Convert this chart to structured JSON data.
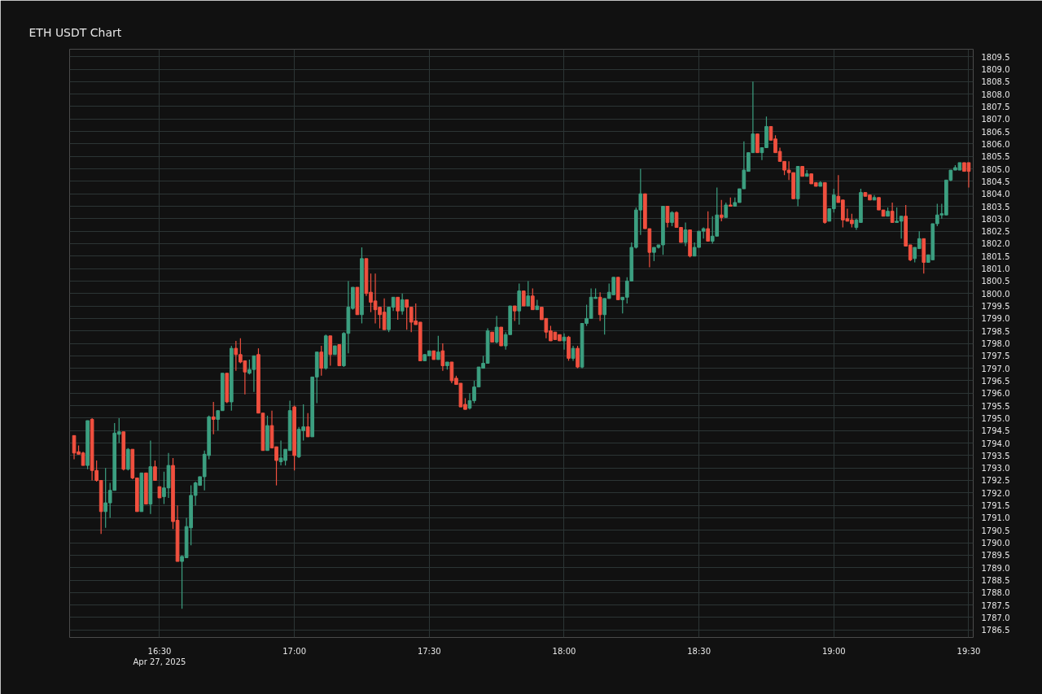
{
  "chart_data": {
    "type": "candlestick",
    "title": "ETH USDT Chart",
    "x": [
      "2025-04-27T16:11",
      "2025-04-27T16:12",
      "2025-04-27T16:13",
      "2025-04-27T16:14",
      "2025-04-27T16:15",
      "2025-04-27T16:16",
      "2025-04-27T16:17",
      "2025-04-27T16:18",
      "2025-04-27T16:19",
      "2025-04-27T16:20",
      "2025-04-27T16:21",
      "2025-04-27T16:22",
      "2025-04-27T16:23",
      "2025-04-27T16:24",
      "2025-04-27T16:25",
      "2025-04-27T16:26",
      "2025-04-27T16:27",
      "2025-04-27T16:28",
      "2025-04-27T16:29",
      "2025-04-27T16:30",
      "2025-04-27T16:31",
      "2025-04-27T16:32",
      "2025-04-27T16:33",
      "2025-04-27T16:34",
      "2025-04-27T16:35",
      "2025-04-27T16:36",
      "2025-04-27T16:37",
      "2025-04-27T16:38",
      "2025-04-27T16:39",
      "2025-04-27T16:40",
      "2025-04-27T16:41",
      "2025-04-27T16:42",
      "2025-04-27T16:43",
      "2025-04-27T16:44",
      "2025-04-27T16:45",
      "2025-04-27T16:46",
      "2025-04-27T16:47",
      "2025-04-27T16:48",
      "2025-04-27T16:49",
      "2025-04-27T16:50",
      "2025-04-27T16:51",
      "2025-04-27T16:52",
      "2025-04-27T16:53",
      "2025-04-27T16:54",
      "2025-04-27T16:55",
      "2025-04-27T16:56",
      "2025-04-27T16:57",
      "2025-04-27T16:58",
      "2025-04-27T16:59",
      "2025-04-27T17:00",
      "2025-04-27T17:01",
      "2025-04-27T17:02",
      "2025-04-27T17:03",
      "2025-04-27T17:04",
      "2025-04-27T17:05",
      "2025-04-27T17:06",
      "2025-04-27T17:07",
      "2025-04-27T17:08",
      "2025-04-27T17:09",
      "2025-04-27T17:10",
      "2025-04-27T17:11",
      "2025-04-27T17:12",
      "2025-04-27T17:13",
      "2025-04-27T17:14",
      "2025-04-27T17:15",
      "2025-04-27T17:16",
      "2025-04-27T17:17",
      "2025-04-27T17:18",
      "2025-04-27T17:19",
      "2025-04-27T17:20",
      "2025-04-27T17:21",
      "2025-04-27T17:22",
      "2025-04-27T17:23",
      "2025-04-27T17:24",
      "2025-04-27T17:25",
      "2025-04-27T17:26",
      "2025-04-27T17:27",
      "2025-04-27T17:28",
      "2025-04-27T17:29",
      "2025-04-27T17:30",
      "2025-04-27T17:31",
      "2025-04-27T17:32",
      "2025-04-27T17:33",
      "2025-04-27T17:34",
      "2025-04-27T17:35",
      "2025-04-27T17:36",
      "2025-04-27T17:37",
      "2025-04-27T17:38",
      "2025-04-27T17:39",
      "2025-04-27T17:40",
      "2025-04-27T17:41",
      "2025-04-27T17:42",
      "2025-04-27T17:43",
      "2025-04-27T17:44",
      "2025-04-27T17:45",
      "2025-04-27T17:46",
      "2025-04-27T17:47",
      "2025-04-27T17:48",
      "2025-04-27T17:49",
      "2025-04-27T17:50",
      "2025-04-27T17:51",
      "2025-04-27T17:52",
      "2025-04-27T17:53",
      "2025-04-27T17:54",
      "2025-04-27T17:55",
      "2025-04-27T17:56",
      "2025-04-27T17:57",
      "2025-04-27T17:58",
      "2025-04-27T17:59",
      "2025-04-27T18:00",
      "2025-04-27T18:01",
      "2025-04-27T18:02",
      "2025-04-27T18:03",
      "2025-04-27T18:04",
      "2025-04-27T18:05",
      "2025-04-27T18:06",
      "2025-04-27T18:07",
      "2025-04-27T18:08",
      "2025-04-27T18:09",
      "2025-04-27T18:10",
      "2025-04-27T18:11",
      "2025-04-27T18:12",
      "2025-04-27T18:13",
      "2025-04-27T18:14",
      "2025-04-27T18:15",
      "2025-04-27T18:16",
      "2025-04-27T18:17",
      "2025-04-27T18:18",
      "2025-04-27T18:19",
      "2025-04-27T18:20",
      "2025-04-27T18:21",
      "2025-04-27T18:22",
      "2025-04-27T18:23",
      "2025-04-27T18:24",
      "2025-04-27T18:25",
      "2025-04-27T18:26",
      "2025-04-27T18:27",
      "2025-04-27T18:28",
      "2025-04-27T18:29",
      "2025-04-27T18:30",
      "2025-04-27T18:31",
      "2025-04-27T18:32",
      "2025-04-27T18:33",
      "2025-04-27T18:34",
      "2025-04-27T18:35",
      "2025-04-27T18:36",
      "2025-04-27T18:37",
      "2025-04-27T18:38",
      "2025-04-27T18:39",
      "2025-04-27T18:40",
      "2025-04-27T18:41",
      "2025-04-27T18:42",
      "2025-04-27T18:43",
      "2025-04-27T18:44",
      "2025-04-27T18:45",
      "2025-04-27T18:46",
      "2025-04-27T18:47",
      "2025-04-27T18:48",
      "2025-04-27T18:49",
      "2025-04-27T18:50",
      "2025-04-27T18:51",
      "2025-04-27T18:52",
      "2025-04-27T18:53",
      "2025-04-27T18:54",
      "2025-04-27T18:55",
      "2025-04-27T18:56",
      "2025-04-27T18:57",
      "2025-04-27T18:58",
      "2025-04-27T18:59",
      "2025-04-27T19:00",
      "2025-04-27T19:01",
      "2025-04-27T19:02",
      "2025-04-27T19:03",
      "2025-04-27T19:04",
      "2025-04-27T19:05",
      "2025-04-27T19:06",
      "2025-04-27T19:07",
      "2025-04-27T19:08",
      "2025-04-27T19:09",
      "2025-04-27T19:10",
      "2025-04-27T19:11",
      "2025-04-27T19:12",
      "2025-04-27T19:13",
      "2025-04-27T19:14",
      "2025-04-27T19:15",
      "2025-04-27T19:16",
      "2025-04-27T19:17",
      "2025-04-27T19:18",
      "2025-04-27T19:19",
      "2025-04-27T19:20",
      "2025-04-27T19:21",
      "2025-04-27T19:22",
      "2025-04-27T19:23",
      "2025-04-27T19:24",
      "2025-04-27T19:25",
      "2025-04-27T19:26",
      "2025-04-27T19:27",
      "2025-04-27T19:28",
      "2025-04-27T19:29",
      "2025-04-27T19:30"
    ],
    "ohlc": [
      [
        1794.3,
        1794.3,
        1793.35,
        1793.6
      ],
      [
        1793.65,
        1793.9,
        1793.55,
        1793.55
      ],
      [
        1793.6,
        1793.65,
        1793.1,
        1793.1
      ],
      [
        1793.1,
        1794.9,
        1792.95,
        1794.9
      ],
      [
        1794.95,
        1795.0,
        1792.5,
        1792.9
      ],
      [
        1792.9,
        1793.3,
        1792.45,
        1792.5
      ],
      [
        1792.5,
        1792.5,
        1790.35,
        1791.25
      ],
      [
        1791.25,
        1793.0,
        1790.6,
        1791.6
      ],
      [
        1791.6,
        1792.4,
        1791.0,
        1792.1
      ],
      [
        1792.1,
        1794.8,
        1792.1,
        1794.4
      ],
      [
        1794.35,
        1795.0,
        1794.0,
        1794.45
      ],
      [
        1794.45,
        1794.45,
        1792.9,
        1792.95
      ],
      [
        1792.95,
        1793.8,
        1792.9,
        1793.75
      ],
      [
        1793.75,
        1793.75,
        1792.55,
        1792.6
      ],
      [
        1792.6,
        1792.6,
        1791.25,
        1791.25
      ],
      [
        1791.25,
        1792.8,
        1791.25,
        1792.8
      ],
      [
        1792.8,
        1792.8,
        1791.55,
        1791.55
      ],
      [
        1791.55,
        1794.1,
        1791.15,
        1793.05
      ],
      [
        1793.05,
        1793.3,
        1792.5,
        1792.5
      ],
      [
        1792.25,
        1792.25,
        1791.8,
        1791.8
      ],
      [
        1791.85,
        1792.85,
        1791.55,
        1792.2
      ],
      [
        1792.2,
        1793.6,
        1791.8,
        1793.1
      ],
      [
        1793.1,
        1793.4,
        1790.55,
        1790.85
      ],
      [
        1790.9,
        1791.5,
        1789.25,
        1789.25
      ],
      [
        1789.25,
        1789.5,
        1787.35,
        1789.45
      ],
      [
        1789.4,
        1791.0,
        1789.4,
        1790.65
      ],
      [
        1790.6,
        1792.3,
        1789.9,
        1791.9
      ],
      [
        1791.9,
        1792.45,
        1791.5,
        1792.4
      ],
      [
        1792.3,
        1792.65,
        1792.3,
        1792.65
      ],
      [
        1792.65,
        1793.7,
        1792.1,
        1793.55
      ],
      [
        1793.5,
        1795.1,
        1793.35,
        1795.05
      ],
      [
        1795.05,
        1795.65,
        1794.35,
        1794.95
      ],
      [
        1794.95,
        1795.3,
        1794.5,
        1795.3
      ],
      [
        1795.3,
        1796.8,
        1795.3,
        1796.8
      ],
      [
        1796.8,
        1796.8,
        1795.6,
        1795.65
      ],
      [
        1795.65,
        1797.9,
        1795.3,
        1797.8
      ],
      [
        1797.8,
        1798.1,
        1796.9,
        1797.55
      ],
      [
        1797.55,
        1798.2,
        1797.2,
        1797.25
      ],
      [
        1797.3,
        1797.3,
        1795.95,
        1796.85
      ],
      [
        1796.8,
        1797.35,
        1796.75,
        1796.95
      ],
      [
        1796.95,
        1797.5,
        1796.05,
        1797.5
      ],
      [
        1797.55,
        1797.8,
        1795.2,
        1795.2
      ],
      [
        1795.2,
        1795.2,
        1793.7,
        1793.7
      ],
      [
        1793.7,
        1795.1,
        1793.7,
        1794.7
      ],
      [
        1794.7,
        1795.3,
        1793.8,
        1793.8
      ],
      [
        1793.85,
        1793.85,
        1792.3,
        1793.3
      ],
      [
        1793.25,
        1794.1,
        1793.1,
        1793.4
      ],
      [
        1793.3,
        1793.75,
        1793.1,
        1793.75
      ],
      [
        1793.7,
        1795.7,
        1793.7,
        1795.3
      ],
      [
        1795.45,
        1795.5,
        1792.9,
        1793.5
      ],
      [
        1793.45,
        1794.65,
        1793.4,
        1794.55
      ],
      [
        1794.5,
        1795.55,
        1794.1,
        1794.65
      ],
      [
        1794.65,
        1795.2,
        1794.25,
        1794.25
      ],
      [
        1794.25,
        1796.65,
        1794.25,
        1796.65
      ],
      [
        1796.65,
        1797.65,
        1795.6,
        1797.65
      ],
      [
        1797.65,
        1797.9,
        1796.7,
        1797.0
      ],
      [
        1797.0,
        1798.35,
        1796.95,
        1798.3
      ],
      [
        1798.3,
        1798.3,
        1797.1,
        1797.55
      ],
      [
        1797.55,
        1797.9,
        1797.55,
        1797.9
      ],
      [
        1797.95,
        1797.95,
        1797.1,
        1797.1
      ],
      [
        1797.1,
        1798.45,
        1797.05,
        1798.4
      ],
      [
        1798.4,
        1800.5,
        1797.6,
        1799.45
      ],
      [
        1799.4,
        1800.25,
        1799.35,
        1800.25
      ],
      [
        1800.25,
        1800.25,
        1799.15,
        1799.15
      ],
      [
        1799.15,
        1801.85,
        1798.8,
        1801.4
      ],
      [
        1801.4,
        1801.4,
        1799.9,
        1800.0
      ],
      [
        1800.05,
        1800.8,
        1799.25,
        1799.65
      ],
      [
        1799.7,
        1800.8,
        1798.8,
        1799.35
      ],
      [
        1799.45,
        1799.45,
        1798.6,
        1799.15
      ],
      [
        1799.25,
        1799.8,
        1798.55,
        1798.55
      ],
      [
        1798.55,
        1799.45,
        1798.45,
        1799.45
      ],
      [
        1799.45,
        1799.85,
        1799.3,
        1799.85
      ],
      [
        1799.85,
        1799.85,
        1798.95,
        1799.3
      ],
      [
        1799.3,
        1800.0,
        1799.15,
        1799.75
      ],
      [
        1799.75,
        1799.75,
        1798.55,
        1799.45
      ],
      [
        1799.45,
        1799.45,
        1798.45,
        1798.85
      ],
      [
        1798.9,
        1799.6,
        1798.75,
        1798.75
      ],
      [
        1798.85,
        1798.85,
        1797.3,
        1797.3
      ],
      [
        1797.3,
        1797.55,
        1797.3,
        1797.55
      ],
      [
        1797.5,
        1797.7,
        1797.5,
        1797.7
      ],
      [
        1797.7,
        1797.7,
        1797.35,
        1797.35
      ],
      [
        1797.35,
        1798.3,
        1797.35,
        1797.65
      ],
      [
        1797.7,
        1798.0,
        1796.9,
        1797.1
      ],
      [
        1797.1,
        1797.25,
        1796.95,
        1797.25
      ],
      [
        1797.25,
        1797.25,
        1796.4,
        1796.5
      ],
      [
        1796.6,
        1796.7,
        1796.35,
        1796.35
      ],
      [
        1796.4,
        1796.4,
        1795.45,
        1795.45
      ],
      [
        1795.55,
        1795.8,
        1795.35,
        1795.35
      ],
      [
        1795.4,
        1796.0,
        1795.35,
        1795.7
      ],
      [
        1795.7,
        1796.5,
        1795.6,
        1796.25
      ],
      [
        1796.25,
        1797.05,
        1796.25,
        1797.05
      ],
      [
        1797.0,
        1797.5,
        1797.0,
        1797.2
      ],
      [
        1797.2,
        1798.6,
        1797.2,
        1798.5
      ],
      [
        1798.45,
        1798.45,
        1798.05,
        1798.05
      ],
      [
        1798.05,
        1799.1,
        1798.0,
        1798.65
      ],
      [
        1798.65,
        1798.65,
        1797.9,
        1797.9
      ],
      [
        1797.9,
        1798.45,
        1797.75,
        1798.35
      ],
      [
        1798.35,
        1799.5,
        1798.35,
        1799.5
      ],
      [
        1799.5,
        1799.5,
        1798.9,
        1799.3
      ],
      [
        1799.3,
        1800.4,
        1798.75,
        1800.1
      ],
      [
        1800.1,
        1800.1,
        1799.5,
        1799.5
      ],
      [
        1799.5,
        1800.5,
        1799.5,
        1799.9
      ],
      [
        1799.9,
        1800.2,
        1799.35,
        1799.35
      ],
      [
        1799.35,
        1799.75,
        1799.35,
        1799.5
      ],
      [
        1799.45,
        1799.45,
        1798.95,
        1798.95
      ],
      [
        1799.0,
        1799.0,
        1798.2,
        1798.45
      ],
      [
        1798.5,
        1798.7,
        1798.1,
        1798.1
      ],
      [
        1798.45,
        1798.45,
        1798.15,
        1798.15
      ],
      [
        1798.35,
        1798.35,
        1798.1,
        1798.1
      ],
      [
        1798.1,
        1798.4,
        1797.75,
        1798.25
      ],
      [
        1798.25,
        1798.3,
        1797.3,
        1797.4
      ],
      [
        1797.4,
        1797.9,
        1797.3,
        1797.8
      ],
      [
        1797.8,
        1797.9,
        1797.0,
        1797.05
      ],
      [
        1797.05,
        1798.8,
        1797.0,
        1798.8
      ],
      [
        1798.8,
        1799.55,
        1798.7,
        1799.0
      ],
      [
        1799.0,
        1800.2,
        1799.0,
        1799.85
      ],
      [
        1799.8,
        1800.2,
        1799.8,
        1799.85
      ],
      [
        1799.85,
        1800.05,
        1798.9,
        1799.15
      ],
      [
        1799.15,
        1799.8,
        1798.35,
        1799.8
      ],
      [
        1799.8,
        1800.4,
        1799.8,
        1800.05
      ],
      [
        1799.95,
        1800.65,
        1799.95,
        1800.65
      ],
      [
        1800.65,
        1800.65,
        1799.75,
        1799.75
      ],
      [
        1799.75,
        1799.85,
        1799.2,
        1799.85
      ],
      [
        1799.85,
        1800.65,
        1799.6,
        1800.5
      ],
      [
        1800.5,
        1802.05,
        1800.5,
        1801.85
      ],
      [
        1801.85,
        1803.45,
        1801.8,
        1803.35
      ],
      [
        1803.35,
        1805.0,
        1802.35,
        1804.0
      ],
      [
        1804.0,
        1804.0,
        1802.6,
        1802.6
      ],
      [
        1802.6,
        1802.6,
        1801.05,
        1801.65
      ],
      [
        1801.65,
        1801.85,
        1801.3,
        1801.85
      ],
      [
        1801.85,
        1801.95,
        1801.8,
        1801.95
      ],
      [
        1801.95,
        1803.5,
        1801.55,
        1803.5
      ],
      [
        1803.5,
        1803.5,
        1802.65,
        1802.85
      ],
      [
        1802.85,
        1803.3,
        1802.7,
        1803.25
      ],
      [
        1803.25,
        1803.3,
        1802.65,
        1802.65
      ],
      [
        1802.65,
        1802.65,
        1802.05,
        1802.05
      ],
      [
        1802.05,
        1802.85,
        1801.9,
        1802.55
      ],
      [
        1802.55,
        1802.55,
        1801.45,
        1801.5
      ],
      [
        1801.5,
        1802.05,
        1801.5,
        1801.85
      ],
      [
        1801.85,
        1802.5,
        1801.85,
        1802.5
      ],
      [
        1802.5,
        1802.65,
        1802.2,
        1802.6
      ],
      [
        1802.6,
        1803.3,
        1802.1,
        1802.1
      ],
      [
        1802.1,
        1803.1,
        1802.0,
        1802.3
      ],
      [
        1802.3,
        1804.25,
        1802.3,
        1803.15
      ],
      [
        1803.15,
        1803.75,
        1802.9,
        1803.05
      ],
      [
        1803.05,
        1803.65,
        1803.05,
        1803.55
      ],
      [
        1803.55,
        1803.85,
        1803.5,
        1803.5
      ],
      [
        1803.5,
        1803.85,
        1803.5,
        1803.65
      ],
      [
        1803.65,
        1804.2,
        1803.65,
        1804.2
      ],
      [
        1804.2,
        1806.1,
        1804.2,
        1804.95
      ],
      [
        1804.9,
        1805.65,
        1804.9,
        1805.65
      ],
      [
        1805.65,
        1808.5,
        1805.65,
        1806.4
      ],
      [
        1806.4,
        1806.4,
        1805.65,
        1805.65
      ],
      [
        1805.65,
        1805.85,
        1805.35,
        1805.85
      ],
      [
        1805.85,
        1807.1,
        1805.85,
        1806.7
      ],
      [
        1806.7,
        1806.7,
        1806.15,
        1806.15
      ],
      [
        1806.2,
        1806.35,
        1805.65,
        1805.65
      ],
      [
        1805.7,
        1805.85,
        1805.3,
        1805.3
      ],
      [
        1805.3,
        1805.3,
        1804.75,
        1804.95
      ],
      [
        1804.95,
        1805.3,
        1804.55,
        1804.85
      ],
      [
        1804.85,
        1804.85,
        1803.8,
        1803.8
      ],
      [
        1803.8,
        1805.1,
        1803.5,
        1805.1
      ],
      [
        1805.1,
        1805.1,
        1804.7,
        1804.7
      ],
      [
        1804.7,
        1804.95,
        1804.7,
        1804.8
      ],
      [
        1804.8,
        1804.8,
        1804.4,
        1804.4
      ],
      [
        1804.45,
        1804.45,
        1804.3,
        1804.3
      ],
      [
        1804.3,
        1804.5,
        1804.3,
        1804.45
      ],
      [
        1804.45,
        1804.45,
        1802.8,
        1802.85
      ],
      [
        1802.9,
        1803.4,
        1802.9,
        1803.4
      ],
      [
        1803.4,
        1804.2,
        1803.25,
        1803.95
      ],
      [
        1803.9,
        1804.75,
        1803.65,
        1803.65
      ],
      [
        1803.75,
        1803.75,
        1802.65,
        1802.95
      ],
      [
        1803.0,
        1803.4,
        1802.9,
        1802.9
      ],
      [
        1802.95,
        1803.2,
        1802.65,
        1802.8
      ],
      [
        1802.65,
        1803.0,
        1802.55,
        1802.95
      ],
      [
        1802.85,
        1804.2,
        1802.85,
        1804.05
      ],
      [
        1804.05,
        1804.05,
        1803.9,
        1803.9
      ],
      [
        1803.95,
        1803.95,
        1803.75,
        1803.75
      ],
      [
        1803.75,
        1803.95,
        1803.75,
        1803.85
      ],
      [
        1803.85,
        1803.85,
        1803.35,
        1803.35
      ],
      [
        1803.35,
        1803.35,
        1803.1,
        1803.1
      ],
      [
        1803.1,
        1803.45,
        1803.1,
        1803.3
      ],
      [
        1803.3,
        1803.65,
        1802.85,
        1802.85
      ],
      [
        1802.85,
        1803.45,
        1802.85,
        1802.9
      ],
      [
        1802.9,
        1803.1,
        1802.2,
        1803.1
      ],
      [
        1803.1,
        1803.55,
        1801.9,
        1801.9
      ],
      [
        1801.95,
        1801.95,
        1801.3,
        1801.35
      ],
      [
        1801.4,
        1801.85,
        1801.25,
        1801.85
      ],
      [
        1801.8,
        1802.5,
        1801.8,
        1802.2
      ],
      [
        1802.2,
        1802.2,
        1800.8,
        1801.25
      ],
      [
        1801.25,
        1801.55,
        1801.25,
        1801.55
      ],
      [
        1801.35,
        1802.8,
        1801.35,
        1802.8
      ],
      [
        1802.8,
        1803.6,
        1802.7,
        1803.15
      ],
      [
        1803.15,
        1803.6,
        1803.0,
        1803.2
      ],
      [
        1803.15,
        1804.55,
        1803.15,
        1804.55
      ],
      [
        1804.55,
        1804.95,
        1804.5,
        1804.95
      ],
      [
        1804.95,
        1805.15,
        1804.95,
        1805.05
      ],
      [
        1804.95,
        1805.25,
        1804.95,
        1805.25
      ],
      [
        1805.25,
        1805.25,
        1804.9,
        1804.9
      ],
      [
        1805.25,
        1805.25,
        1804.25,
        1804.9
      ]
    ],
    "colors": [
      "#f0503f",
      "#f0503f",
      "#f0503f",
      "#3c9f80",
      "#f0503f",
      "#f0503f",
      "#f0503f",
      "#3c9f80",
      "#3c9f80",
      "#3c9f80",
      "#3c9f80",
      "#f0503f",
      "#3c9f80",
      "#f0503f",
      "#f0503f",
      "#3c9f80",
      "#f0503f",
      "#3c9f80",
      "#f0503f",
      "#f0503f",
      "#3c9f80",
      "#3c9f80",
      "#f0503f",
      "#f0503f",
      "#3c9f80",
      "#3c9f80",
      "#3c9f80",
      "#3c9f80",
      "#3c9f80",
      "#3c9f80",
      "#3c9f80",
      "#f0503f",
      "#3c9f80",
      "#3c9f80",
      "#f0503f",
      "#3c9f80",
      "#f0503f",
      "#f0503f",
      "#f0503f",
      "#3c9f80",
      "#3c9f80",
      "#f0503f",
      "#f0503f",
      "#3c9f80",
      "#f0503f",
      "#f0503f",
      "#3c9f80",
      "#3c9f80",
      "#3c9f80",
      "#f0503f",
      "#3c9f80",
      "#3c9f80",
      "#f0503f",
      "#3c9f80",
      "#3c9f80",
      "#f0503f",
      "#3c9f80",
      "#f0503f",
      "#3c9f80",
      "#f0503f",
      "#3c9f80",
      "#3c9f80",
      "#3c9f80",
      "#f0503f",
      "#3c9f80",
      "#f0503f",
      "#f0503f",
      "#f0503f",
      "#f0503f",
      "#f0503f",
      "#3c9f80",
      "#3c9f80",
      "#f0503f",
      "#3c9f80",
      "#f0503f",
      "#f0503f",
      "#f0503f",
      "#f0503f",
      "#3c9f80",
      "#3c9f80",
      "#f0503f",
      "#3c9f80",
      "#f0503f",
      "#3c9f80",
      "#f0503f",
      "#f0503f",
      "#f0503f",
      "#f0503f",
      "#3c9f80",
      "#3c9f80",
      "#3c9f80",
      "#3c9f80",
      "#3c9f80",
      "#f0503f",
      "#3c9f80",
      "#f0503f",
      "#3c9f80",
      "#3c9f80",
      "#f0503f",
      "#3c9f80",
      "#f0503f",
      "#3c9f80",
      "#f0503f",
      "#3c9f80",
      "#f0503f",
      "#f0503f",
      "#f0503f",
      "#f0503f",
      "#f0503f",
      "#3c9f80",
      "#f0503f",
      "#3c9f80",
      "#f0503f",
      "#3c9f80",
      "#3c9f80",
      "#3c9f80",
      "#3c9f80",
      "#f0503f",
      "#3c9f80",
      "#3c9f80",
      "#3c9f80",
      "#f0503f",
      "#3c9f80",
      "#3c9f80",
      "#3c9f80",
      "#3c9f80",
      "#3c9f80",
      "#f0503f",
      "#f0503f",
      "#3c9f80",
      "#3c9f80",
      "#3c9f80",
      "#f0503f",
      "#3c9f80",
      "#f0503f",
      "#f0503f",
      "#3c9f80",
      "#f0503f",
      "#3c9f80",
      "#3c9f80",
      "#3c9f80",
      "#f0503f",
      "#3c9f80",
      "#3c9f80",
      "#f0503f",
      "#3c9f80",
      "#f0503f",
      "#3c9f80",
      "#3c9f80",
      "#3c9f80",
      "#3c9f80",
      "#3c9f80",
      "#f0503f",
      "#3c9f80",
      "#3c9f80",
      "#f0503f",
      "#f0503f",
      "#f0503f",
      "#f0503f",
      "#f0503f",
      "#f0503f",
      "#3c9f80",
      "#f0503f",
      "#3c9f80",
      "#f0503f",
      "#f0503f",
      "#3c9f80",
      "#f0503f",
      "#3c9f80",
      "#3c9f80",
      "#f0503f",
      "#f0503f",
      "#f0503f",
      "#f0503f",
      "#3c9f80",
      "#3c9f80",
      "#f0503f",
      "#f0503f",
      "#3c9f80",
      "#f0503f",
      "#f0503f",
      "#3c9f80",
      "#f0503f",
      "#3c9f80",
      "#3c9f80",
      "#f0503f",
      "#f0503f",
      "#3c9f80",
      "#3c9f80",
      "#f0503f",
      "#3c9f80",
      "#3c9f80",
      "#3c9f80",
      "#3c9f80",
      "#3c9f80",
      "#3c9f80",
      "#3c9f80",
      "#3c9f80",
      "#f0503f",
      "#f0503f"
    ],
    "xlim": [
      "2025-04-27T16:10",
      "2025-04-27T19:31"
    ],
    "xticks": [
      {
        "value": "2025-04-27T16:30",
        "label": "16:30\nApr 27, 2025"
      },
      {
        "value": "2025-04-27T17:00",
        "label": "17:00"
      },
      {
        "value": "2025-04-27T17:30",
        "label": "17:30"
      },
      {
        "value": "2025-04-27T18:00",
        "label": "18:00"
      },
      {
        "value": "2025-04-27T18:30",
        "label": "18:30"
      },
      {
        "value": "2025-04-27T19:00",
        "label": "19:00"
      },
      {
        "value": "2025-04-27T19:30",
        "label": "19:30"
      }
    ],
    "ylim": [
      1786.2,
      1809.8
    ],
    "yticks": [
      1786.5,
      {
        "value": 1787,
        "label": "1787.0"
      },
      1787.5,
      {
        "value": 1788,
        "label": "1788.0"
      },
      1788.5,
      {
        "value": 1789,
        "label": "1789.0"
      },
      1789.5,
      {
        "value": 1790,
        "label": "1790.0"
      },
      1790.5,
      {
        "value": 1791,
        "label": "1791.0"
      },
      1791.5,
      {
        "value": 1792,
        "label": "1792.0"
      },
      1792.5,
      {
        "value": 1793,
        "label": "1793.0"
      },
      1793.5,
      {
        "value": 1794,
        "label": "1794.0"
      },
      1794.5,
      {
        "value": 1795,
        "label": "1795.0"
      },
      1795.5,
      {
        "value": 1796,
        "label": "1796.0"
      },
      1796.5,
      {
        "value": 1797,
        "label": "1797.0"
      },
      1797.5,
      {
        "value": 1798,
        "label": "1798.0"
      },
      1798.5,
      {
        "value": 1799,
        "label": "1799.0"
      },
      1799.5,
      {
        "value": 1800,
        "label": "1800.0"
      },
      1800.5,
      {
        "value": 1801,
        "label": "1801.0"
      },
      1801.5,
      {
        "value": 1802,
        "label": "1802.0"
      },
      1802.5,
      {
        "value": 1803,
        "label": "1803.0"
      },
      1803.5,
      {
        "value": 1804,
        "label": "1804.0"
      },
      1804.5,
      {
        "value": 1805,
        "label": "1805.0"
      },
      1805.5,
      {
        "value": 1806,
        "label": "1806.0"
      },
      1806.5,
      {
        "value": 1807,
        "label": "1807.0"
      },
      1807.5,
      {
        "value": 1808,
        "label": "1808.0"
      },
      1808.5,
      {
        "value": 1809,
        "label": "1809.0"
      },
      1809.5
    ],
    "grid": true
  }
}
